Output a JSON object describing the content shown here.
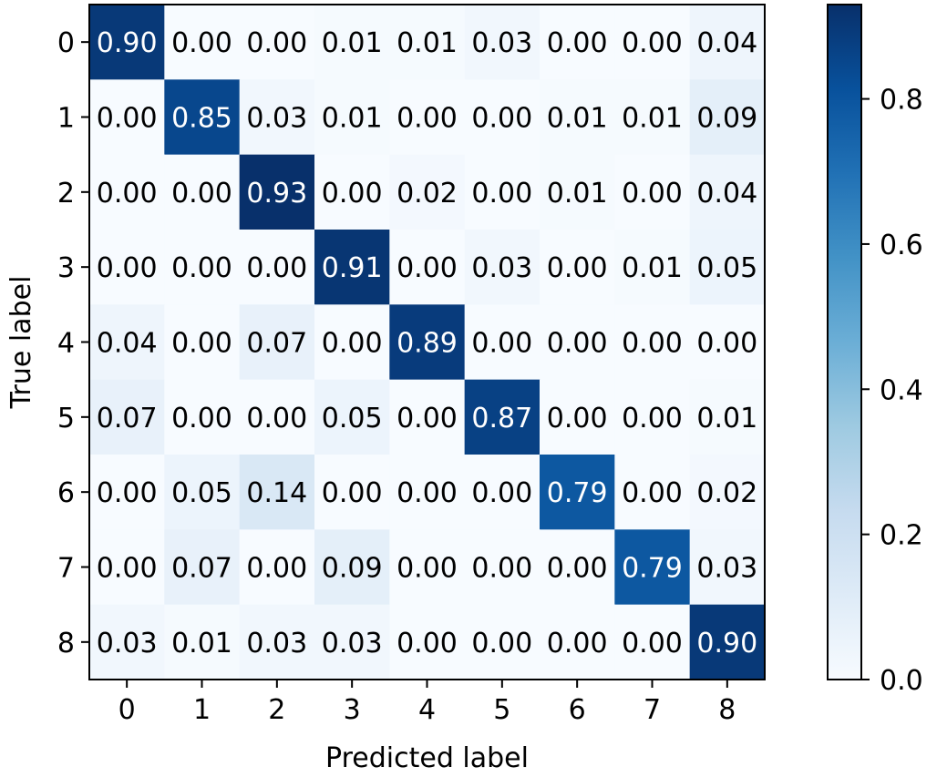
{
  "chart_data": {
    "type": "heatmap",
    "title": "",
    "xlabel": "Predicted label",
    "ylabel": "True label",
    "x_categories": [
      "0",
      "1",
      "2",
      "3",
      "4",
      "5",
      "6",
      "7",
      "8"
    ],
    "y_categories": [
      "0",
      "1",
      "2",
      "3",
      "4",
      "5",
      "6",
      "7",
      "8"
    ],
    "values": [
      [
        0.9,
        0.0,
        0.0,
        0.01,
        0.01,
        0.03,
        0.0,
        0.0,
        0.04
      ],
      [
        0.0,
        0.85,
        0.03,
        0.01,
        0.0,
        0.0,
        0.01,
        0.01,
        0.09
      ],
      [
        0.0,
        0.0,
        0.93,
        0.0,
        0.02,
        0.0,
        0.01,
        0.0,
        0.04
      ],
      [
        0.0,
        0.0,
        0.0,
        0.91,
        0.0,
        0.03,
        0.0,
        0.01,
        0.05
      ],
      [
        0.04,
        0.0,
        0.07,
        0.0,
        0.89,
        0.0,
        0.0,
        0.0,
        0.0
      ],
      [
        0.07,
        0.0,
        0.0,
        0.05,
        0.0,
        0.87,
        0.0,
        0.0,
        0.01
      ],
      [
        0.0,
        0.05,
        0.14,
        0.0,
        0.0,
        0.0,
        0.79,
        0.0,
        0.02
      ],
      [
        0.0,
        0.07,
        0.0,
        0.09,
        0.0,
        0.0,
        0.0,
        0.79,
        0.03
      ],
      [
        0.03,
        0.01,
        0.03,
        0.03,
        0.0,
        0.0,
        0.0,
        0.0,
        0.9
      ]
    ],
    "value_format": "2 decimals",
    "colormap": "Blues",
    "color_low": "#f7fbff",
    "color_high": "#08306b",
    "colorbar": {
      "range": [
        0.0,
        0.93
      ],
      "ticks": [
        0.0,
        0.2,
        0.4,
        0.6,
        0.8
      ],
      "tick_labels": [
        "0.0",
        "0.2",
        "0.4",
        "0.6",
        "0.8"
      ]
    },
    "text_color_dark": "#000000",
    "text_color_light": "#ffffff",
    "grid": false,
    "legend": "colorbar right"
  }
}
